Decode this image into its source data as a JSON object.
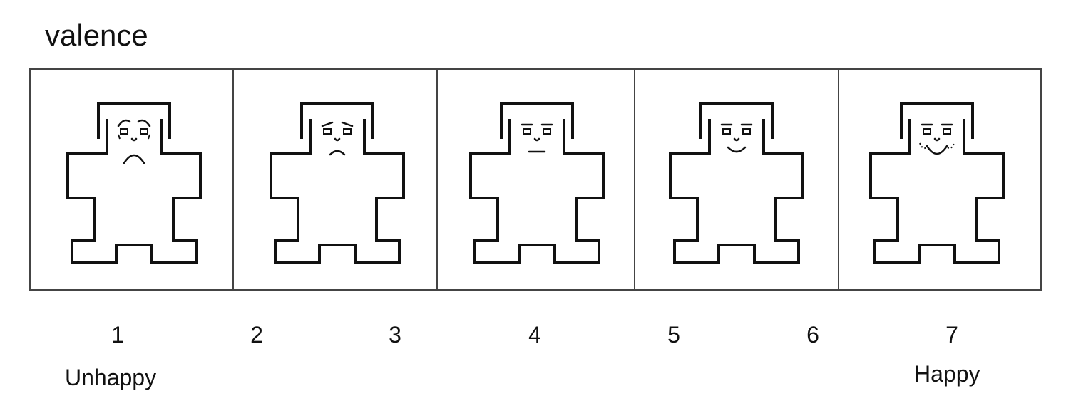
{
  "title": "valence",
  "scale": {
    "points": [
      "1",
      "2",
      "3",
      "4",
      "5",
      "6",
      "7"
    ]
  },
  "anchors": {
    "low": "Unhappy",
    "high": "Happy"
  },
  "figures": [
    {
      "mood": "very-sad"
    },
    {
      "mood": "sad"
    },
    {
      "mood": "neutral"
    },
    {
      "mood": "content"
    },
    {
      "mood": "very-happy"
    }
  ],
  "colors": {
    "ink": "#111111",
    "frame": "#444444",
    "background": "#ffffff"
  }
}
